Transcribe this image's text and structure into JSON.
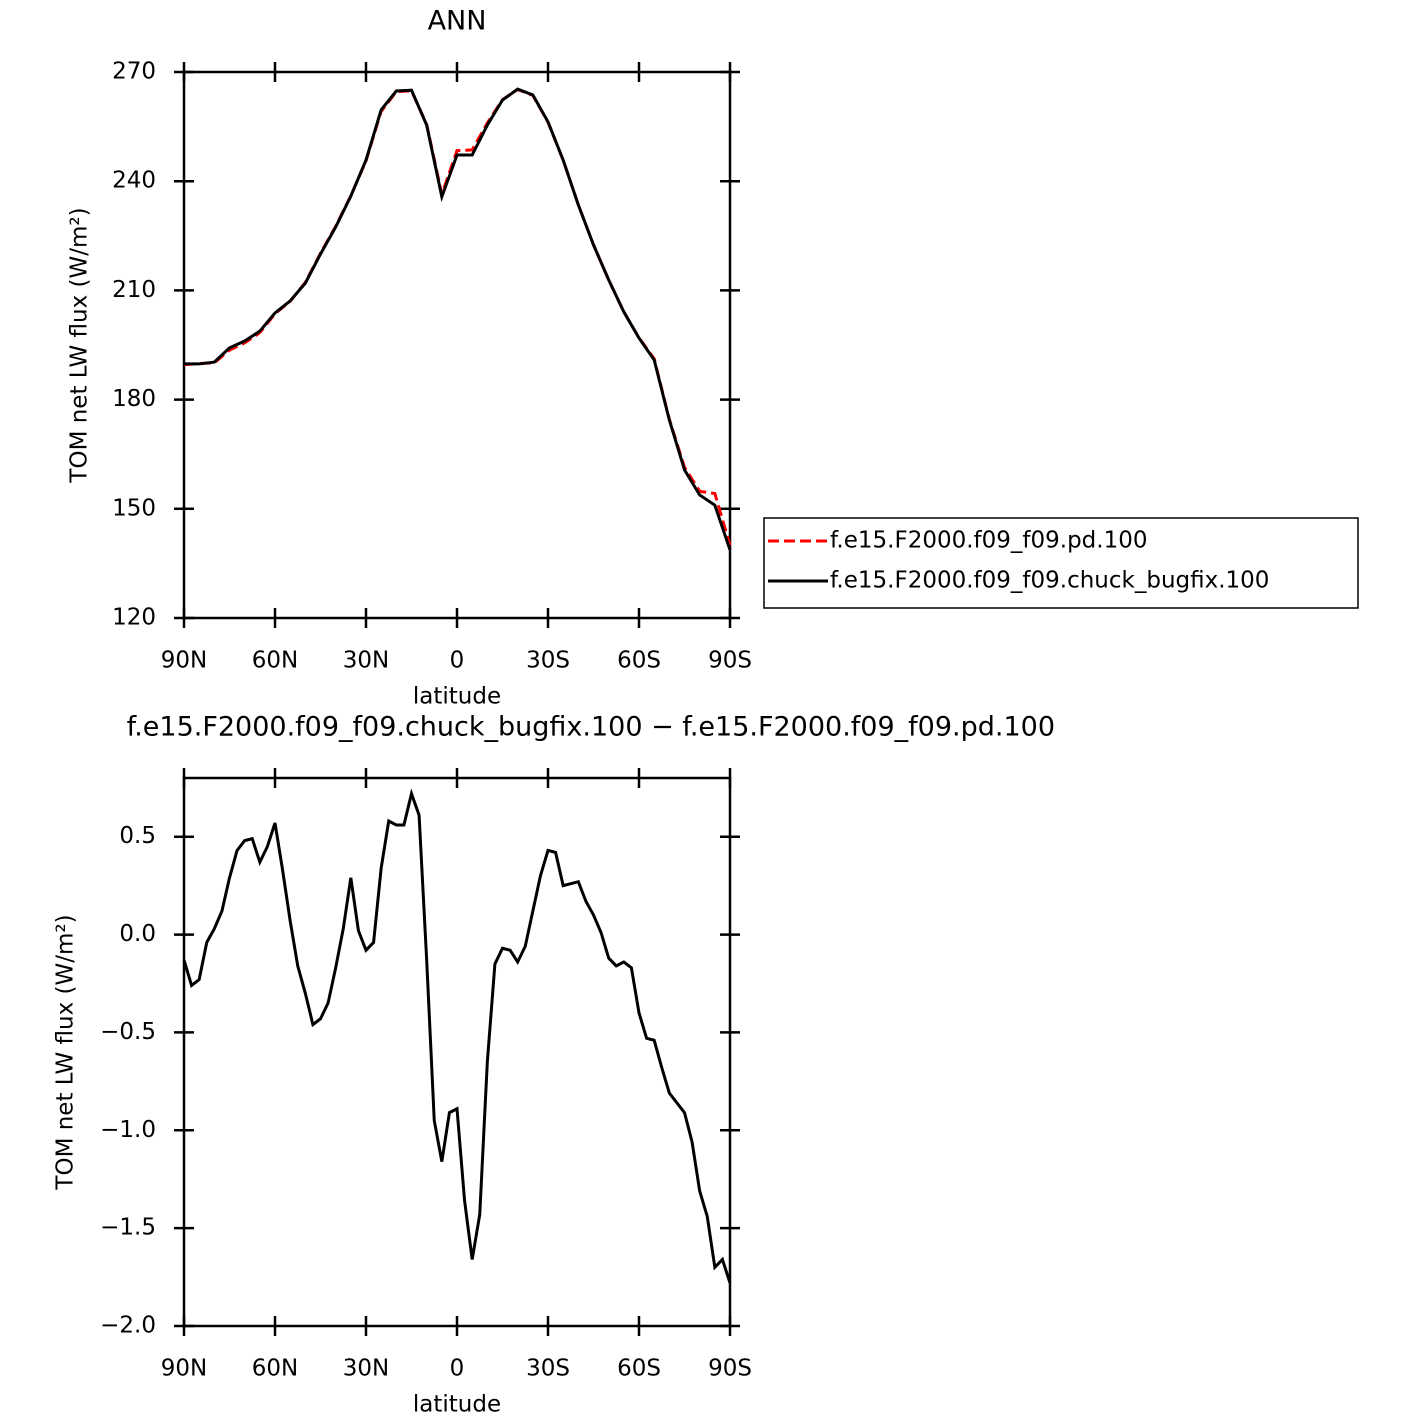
{
  "chart_data": [
    {
      "type": "line",
      "title": "ANN",
      "xlabel": "latitude",
      "ylabel": "TOM net LW flux (W/m²)",
      "x": [
        90,
        85,
        80,
        75,
        70,
        65,
        60,
        55,
        50,
        45,
        40,
        35,
        30,
        25,
        20,
        15,
        10,
        5,
        0,
        -5,
        -10,
        -15,
        -20,
        -25,
        -30,
        -35,
        -40,
        -45,
        -50,
        -55,
        -60,
        -65,
        -70,
        -75,
        -80,
        -85,
        -90
      ],
      "series": [
        {
          "name": "f.e15.F2000.f09_f09.pd.100",
          "color": "#ff0000",
          "line_style": "dashed",
          "values": [
            189.6,
            189.9,
            190.1,
            193.6,
            195.6,
            198.4,
            203.6,
            207.0,
            212.2,
            220.2,
            227.6,
            236.0,
            245.6,
            259.2,
            264.6,
            264.8,
            255.6,
            236.4,
            248.4,
            248.6,
            256.0,
            262.4,
            265.2,
            263.6,
            256.2,
            245.8,
            233.5,
            222.5,
            212.9,
            204.1,
            197.0,
            191.2,
            174.6,
            161.4,
            154.8,
            154.2,
            140.0
          ]
        },
        {
          "name": "f.e15.F2000.f09_f09.chuck_bugfix.100",
          "color": "#000000",
          "line_style": "solid",
          "values": [
            189.8,
            189.8,
            190.3,
            194.2,
            196.1,
            198.8,
            203.8,
            207.1,
            212.0,
            220.0,
            227.4,
            235.9,
            245.8,
            259.6,
            264.8,
            265.0,
            255.4,
            235.7,
            247.2,
            247.2,
            255.4,
            262.3,
            265.3,
            263.7,
            256.3,
            245.8,
            233.5,
            222.5,
            212.9,
            204.1,
            196.9,
            190.9,
            174.4,
            160.7,
            153.8,
            151.0,
            138.7
          ]
        }
      ],
      "xlim": [
        90,
        -90
      ],
      "xticks": [
        {
          "value": 90,
          "label": "90N"
        },
        {
          "value": 60,
          "label": "60N"
        },
        {
          "value": 30,
          "label": "30N"
        },
        0,
        {
          "value": -30,
          "label": "30S"
        },
        {
          "value": -60,
          "label": "60S"
        },
        {
          "value": -90,
          "label": "90S"
        }
      ],
      "ylim": [
        120,
        270
      ],
      "yticks": [
        120,
        150,
        180,
        210,
        240,
        270
      ],
      "legend": "right"
    },
    {
      "type": "line",
      "title": "f.e15.F2000.f09_f09.chuck_bugfix.100 − f.e15.F2000.f09_f09.pd.100",
      "xlabel": "latitude",
      "ylabel": "TOM net LW flux (W/m²)",
      "x": [
        90,
        87.5,
        85,
        82.5,
        80,
        77.5,
        75,
        72.5,
        70,
        67.5,
        65,
        62.5,
        60,
        57.5,
        55,
        52.5,
        50,
        47.5,
        45,
        42.5,
        40,
        37.5,
        35,
        32.5,
        30,
        27.5,
        25,
        22.5,
        20,
        17.5,
        15,
        12.5,
        10,
        7.5,
        5,
        2.5,
        0,
        -2.5,
        -5,
        -7.5,
        -10,
        -12.5,
        -15,
        -17.5,
        -20,
        -22.5,
        -25,
        -27.5,
        -30,
        -32.5,
        -35,
        -37.5,
        -40,
        -42.5,
        -45,
        -47.5,
        -50,
        -52.5,
        -55,
        -57.5,
        -60,
        -62.5,
        -65,
        -67.5,
        -70,
        -72.5,
        -75,
        -77.5,
        -80,
        -82.5,
        -85,
        -87.5,
        -90
      ],
      "series": [
        {
          "name": "f.e15.F2000.f09_f09.chuck_bugfix.100 − f.e15.F2000.f09_f09.pd.100",
          "color": "#000000",
          "line_style": "solid",
          "values": [
            -0.13,
            -0.26,
            -0.23,
            -0.04,
            0.03,
            0.12,
            0.29,
            0.43,
            0.48,
            0.49,
            0.37,
            0.45,
            0.57,
            0.33,
            0.07,
            -0.16,
            -0.3,
            -0.46,
            -0.43,
            -0.35,
            -0.17,
            0.03,
            0.29,
            0.02,
            -0.08,
            -0.04,
            0.34,
            0.58,
            0.56,
            0.56,
            0.72,
            0.61,
            -0.13,
            -0.95,
            -1.16,
            -0.91,
            -0.89,
            -1.36,
            -1.66,
            -1.43,
            -0.65,
            -0.15,
            -0.07,
            -0.08,
            -0.14,
            -0.06,
            0.12,
            0.3,
            0.43,
            0.42,
            0.25,
            0.26,
            0.27,
            0.17,
            0.1,
            0.01,
            -0.12,
            -0.16,
            -0.14,
            -0.17,
            -0.4,
            -0.53,
            -0.54,
            -0.68,
            -0.81,
            -0.86,
            -0.91,
            -1.06,
            -1.31,
            -1.44,
            -1.7,
            -1.66,
            -1.78
          ]
        }
      ],
      "xlim": [
        90,
        -90
      ],
      "xticks": [
        {
          "value": 90,
          "label": "90N"
        },
        {
          "value": 60,
          "label": "60N"
        },
        {
          "value": 30,
          "label": "30N"
        },
        0,
        {
          "value": -30,
          "label": "30S"
        },
        {
          "value": -60,
          "label": "60S"
        },
        {
          "value": -90,
          "label": "90S"
        }
      ],
      "ylim": [
        -2.0,
        0.8
      ],
      "yticks": [
        {
          "value": -2.0,
          "label": "−2.0"
        },
        {
          "value": -1.5,
          "label": "−1.5"
        },
        {
          "value": -1.0,
          "label": "−1.0"
        },
        {
          "value": -0.5,
          "label": "−0.5"
        },
        {
          "value": 0.0,
          "label": "0.0"
        },
        0.5
      ]
    }
  ]
}
